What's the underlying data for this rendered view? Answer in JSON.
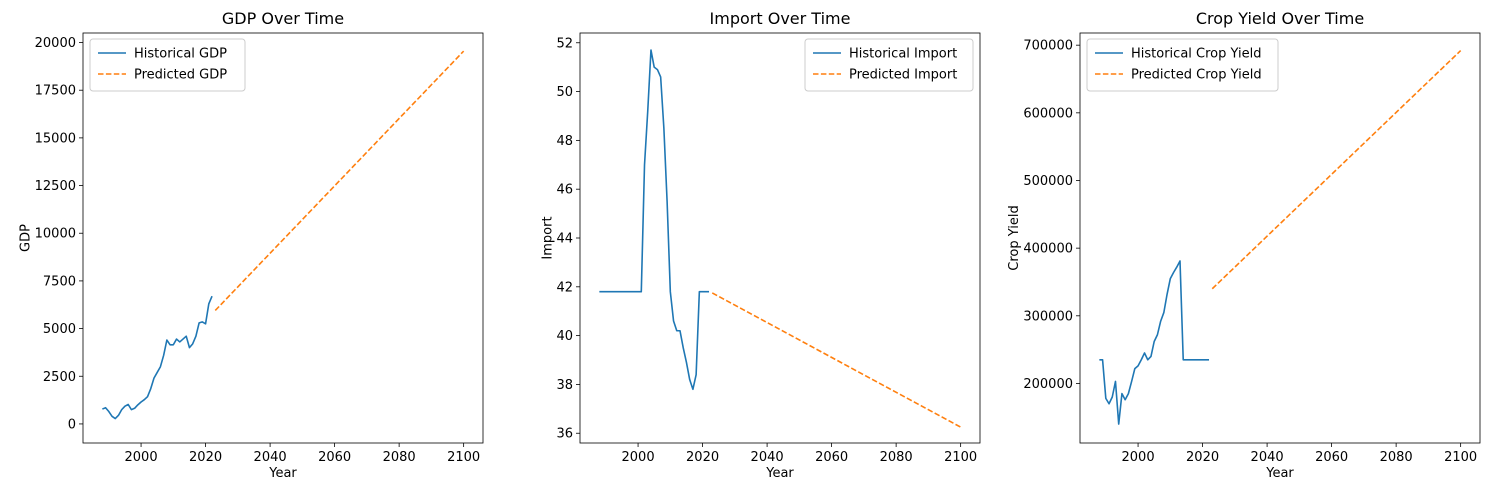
{
  "chart_data": [
    {
      "type": "line",
      "title": "GDP Over Time",
      "xlabel": "Year",
      "ylabel": "GDP",
      "xlim": [
        1982,
        2106
      ],
      "ylim": [
        -1000,
        20500
      ],
      "xticks": [
        "2000",
        "2020",
        "2040",
        "2060",
        "2080",
        "2100"
      ],
      "yticks": [
        "0",
        "2500",
        "5000",
        "7500",
        "10000",
        "12500",
        "15000",
        "17500",
        "20000"
      ],
      "legend_position": "top-left",
      "colors": {
        "historical": "#1f77b4",
        "predicted": "#ff7f0e"
      },
      "series": [
        {
          "name": "Historical GDP",
          "style": "solid",
          "x": [
            1988,
            1989,
            1990,
            1991,
            1992,
            1993,
            1994,
            1995,
            1996,
            1997,
            1998,
            1999,
            2000,
            2001,
            2002,
            2003,
            2004,
            2005,
            2006,
            2007,
            2008,
            2009,
            2010,
            2011,
            2012,
            2013,
            2014,
            2015,
            2016,
            2017,
            2018,
            2019,
            2020,
            2021,
            2022
          ],
          "y": [
            780,
            850,
            650,
            400,
            280,
            450,
            750,
            930,
            1020,
            750,
            820,
            1000,
            1150,
            1270,
            1430,
            1850,
            2400,
            2700,
            3000,
            3600,
            4400,
            4150,
            4150,
            4450,
            4300,
            4450,
            4600,
            4000,
            4200,
            4600,
            5300,
            5350,
            5250,
            6300,
            6700
          ]
        },
        {
          "name": "Predicted GDP",
          "style": "dashed",
          "x": [
            2023,
            2100
          ],
          "y": [
            5950,
            19550
          ]
        }
      ]
    },
    {
      "type": "line",
      "title": "Import Over Time",
      "xlabel": "Year",
      "ylabel": "Import",
      "xlim": [
        1982,
        2106
      ],
      "ylim": [
        35.6,
        52.4
      ],
      "xticks": [
        "2000",
        "2020",
        "2040",
        "2060",
        "2080",
        "2100"
      ],
      "yticks": [
        "36",
        "38",
        "40",
        "42",
        "44",
        "46",
        "48",
        "50",
        "52"
      ],
      "legend_position": "top-right",
      "colors": {
        "historical": "#1f77b4",
        "predicted": "#ff7f0e"
      },
      "series": [
        {
          "name": "Historical Import",
          "style": "solid",
          "x": [
            1988,
            2001,
            2002,
            2003,
            2004,
            2005,
            2006,
            2007,
            2008,
            2009,
            2010,
            2011,
            2012,
            2013,
            2014,
            2015,
            2016,
            2017,
            2018,
            2019,
            2020,
            2021,
            2022
          ],
          "y": [
            41.8,
            41.8,
            47.0,
            49.2,
            51.7,
            51.0,
            50.9,
            50.6,
            48.5,
            45.5,
            41.8,
            40.6,
            40.2,
            40.2,
            39.5,
            38.9,
            38.2,
            37.8,
            38.4,
            41.8,
            41.8,
            41.8,
            41.8
          ]
        },
        {
          "name": "Predicted Import",
          "style": "dashed",
          "x": [
            2023,
            2100
          ],
          "y": [
            41.75,
            36.25
          ]
        }
      ]
    },
    {
      "type": "line",
      "title": "Crop Yield Over Time",
      "xlabel": "Year",
      "ylabel": "Crop Yield",
      "xlim": [
        1982,
        2106
      ],
      "ylim": [
        112000,
        718000
      ],
      "xticks": [
        "2000",
        "2020",
        "2040",
        "2060",
        "2080",
        "2100"
      ],
      "yticks": [
        "200000",
        "300000",
        "400000",
        "500000",
        "600000",
        "700000"
      ],
      "legend_position": "top-left",
      "colors": {
        "historical": "#1f77b4",
        "predicted": "#ff7f0e"
      },
      "series": [
        {
          "name": "Historical Crop Yield",
          "style": "solid",
          "x": [
            1988,
            1989,
            1990,
            1991,
            1992,
            1993,
            1994,
            1995,
            1996,
            1997,
            1998,
            1999,
            2000,
            2001,
            2002,
            2003,
            2004,
            2005,
            2006,
            2007,
            2008,
            2009,
            2010,
            2011,
            2012,
            2013,
            2014,
            2015,
            2016,
            2017,
            2018,
            2019,
            2020,
            2021,
            2022
          ],
          "y": [
            235000,
            235000,
            178000,
            170000,
            180000,
            203000,
            140000,
            185000,
            176000,
            185000,
            203000,
            222000,
            226000,
            235000,
            245000,
            235000,
            240000,
            262000,
            272000,
            292000,
            305000,
            332000,
            355000,
            364000,
            372000,
            381000,
            235000,
            235000,
            235000,
            235000,
            235000,
            235000,
            235000,
            235000,
            235000
          ]
        },
        {
          "name": "Predicted Crop Yield",
          "style": "dashed",
          "x": [
            2023,
            2100
          ],
          "y": [
            340000,
            692000
          ]
        }
      ]
    }
  ]
}
